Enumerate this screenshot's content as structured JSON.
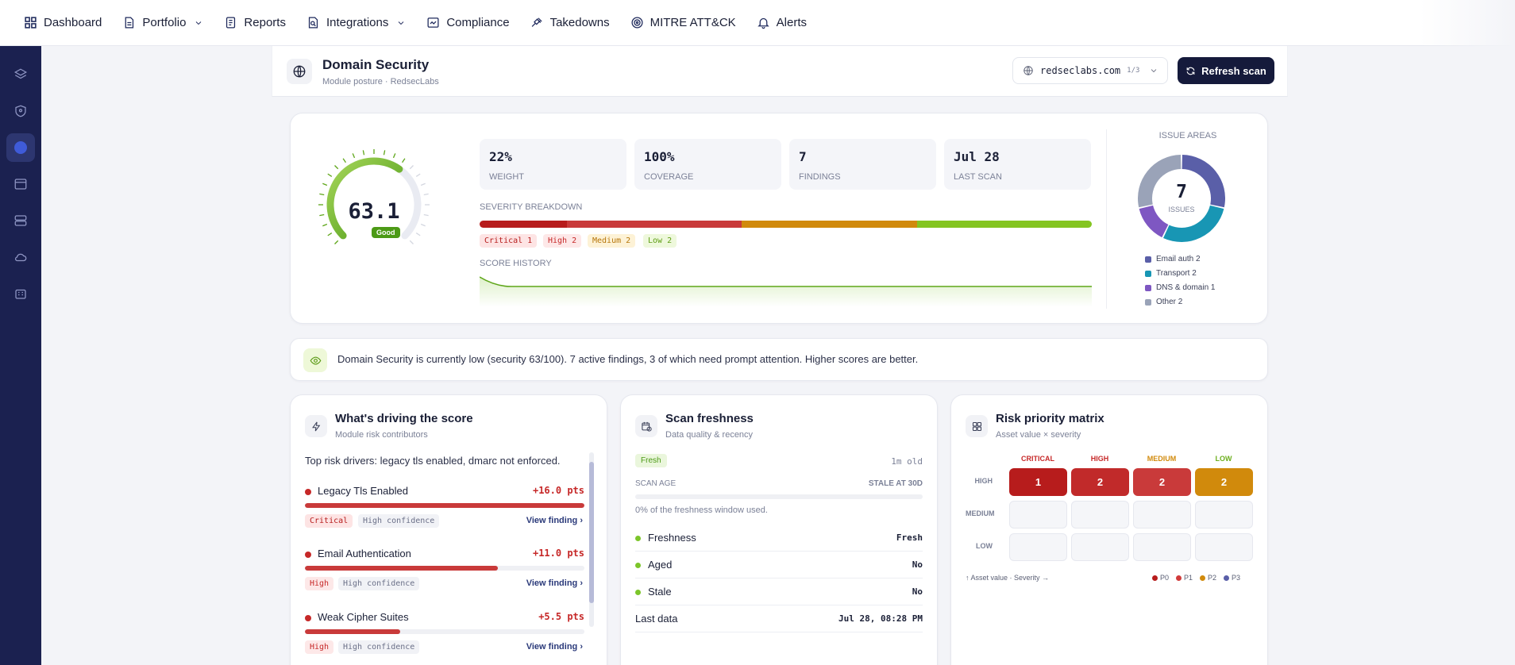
{
  "nav": {
    "items": [
      {
        "label": "Dashboard",
        "icon": "dashboard-icon"
      },
      {
        "label": "Portfolio",
        "icon": "portfolio-icon",
        "dropdown": true
      },
      {
        "label": "Reports",
        "icon": "reports-icon"
      },
      {
        "label": "Integrations",
        "icon": "integrations-icon",
        "dropdown": true
      },
      {
        "label": "Compliance",
        "icon": "compliance-icon"
      },
      {
        "label": "Takedowns",
        "icon": "gavel-icon"
      },
      {
        "label": "MITRE ATT&CK",
        "icon": "target-icon"
      },
      {
        "label": "Alerts",
        "icon": "bell-icon"
      }
    ]
  },
  "sidebar": {
    "icons": [
      "layers-icon",
      "shield-icon",
      "globe-icon",
      "browser-icon",
      "server-icon",
      "cloud-icon",
      "building-icon"
    ],
    "active_index": 2
  },
  "header": {
    "title": "Domain Security",
    "subtitle": "Module posture · RedsecLabs",
    "domain": "redseclabs.com",
    "domain_count": "1/3",
    "refresh_label": "Refresh scan"
  },
  "score": {
    "value": "63.1",
    "value_fraction": 0.631,
    "rating": "Good",
    "stats": [
      {
        "value": "22%",
        "label": "WEIGHT"
      },
      {
        "value": "100%",
        "label": "COVERAGE"
      },
      {
        "value": "7",
        "label": "FINDINGS"
      },
      {
        "value": "Jul 28",
        "label": "LAST SCAN"
      }
    ],
    "severity_label": "SEVERITY BREAKDOWN",
    "severity": [
      {
        "label": "Critical 1",
        "count": 1,
        "color": "#b71c1c"
      },
      {
        "label": "High 2",
        "count": 2,
        "color": "#c93a3a"
      },
      {
        "label": "Medium 2",
        "count": 2,
        "color": "#d18a0c"
      },
      {
        "label": "Low 2",
        "count": 2,
        "color": "#84c521"
      }
    ],
    "history_label": "SCORE HISTORY",
    "issue_areas": {
      "title": "ISSUE AREAS",
      "total": "7",
      "total_label": "ISSUES",
      "items": [
        {
          "label": "Email auth 2",
          "value": 2,
          "color": "#5a5fa8"
        },
        {
          "label": "Transport 2",
          "value": 2,
          "color": "#1896b4"
        },
        {
          "label": "DNS & domain 1",
          "value": 1,
          "color": "#7e57c2"
        },
        {
          "label": "Other 2",
          "value": 2,
          "color": "#9aa3b8"
        }
      ]
    }
  },
  "insight": {
    "text": "Domain Security is currently low (security 63/100). 7 active findings, 3 of which need prompt attention. Higher scores are better."
  },
  "drivers": {
    "title": "What's driving the score",
    "subtitle": "Module risk contributors",
    "intro": "Top risk drivers: legacy tls enabled, dmarc not enforced.",
    "items": [
      {
        "name": "Legacy Tls Enabled",
        "points": "+16.0 pts",
        "fill": 1.0,
        "severity": "Critical",
        "confidence": "High confidence",
        "link": "View finding"
      },
      {
        "name": "Email Authentication",
        "points": "+11.0 pts",
        "fill": 0.69,
        "severity": "High",
        "confidence": "High confidence",
        "link": "View finding"
      },
      {
        "name": "Weak Cipher Suites",
        "points": "+5.5 pts",
        "fill": 0.34,
        "severity": "High",
        "confidence": "High confidence",
        "link": "View finding"
      }
    ]
  },
  "freshness": {
    "title": "Scan freshness",
    "subtitle": "Data quality & recency",
    "status": "Fresh",
    "age": "1m old",
    "scan_age_label": "SCAN AGE",
    "stale_label": "STALE AT 30D",
    "window_text": "0% of the freshness window used.",
    "window_fraction": 0,
    "rows": [
      {
        "key": "Freshness",
        "value": "Fresh"
      },
      {
        "key": "Aged",
        "value": "No"
      },
      {
        "key": "Stale",
        "value": "No"
      }
    ],
    "last_data_label": "Last data",
    "last_data_value": "Jul 28, 08:28 PM"
  },
  "matrix": {
    "title": "Risk priority matrix",
    "subtitle": "Asset value × severity",
    "columns": [
      {
        "label": "CRITICAL",
        "color": "#c62828"
      },
      {
        "label": "HIGH",
        "color": "#c62828"
      },
      {
        "label": "MEDIUM",
        "color": "#d18a0c"
      },
      {
        "label": "LOW",
        "color": "#6cae1c"
      }
    ],
    "rows": [
      "HIGH",
      "MEDIUM",
      "LOW"
    ],
    "cells_high": [
      {
        "value": "1",
        "color": "#b71c1c"
      },
      {
        "value": "2",
        "color": "#c12a2a"
      },
      {
        "value": "2",
        "color": "#c93a3a"
      },
      {
        "value": "2",
        "color": "#d18a0c"
      }
    ],
    "footer": "↑ Asset value · Severity →",
    "legend": [
      {
        "label": "P0",
        "color": "#b71c1c"
      },
      {
        "label": "P1",
        "color": "#d13b3b"
      },
      {
        "label": "P2",
        "color": "#d18a0c"
      },
      {
        "label": "P3",
        "color": "#5a5fa8"
      }
    ]
  }
}
